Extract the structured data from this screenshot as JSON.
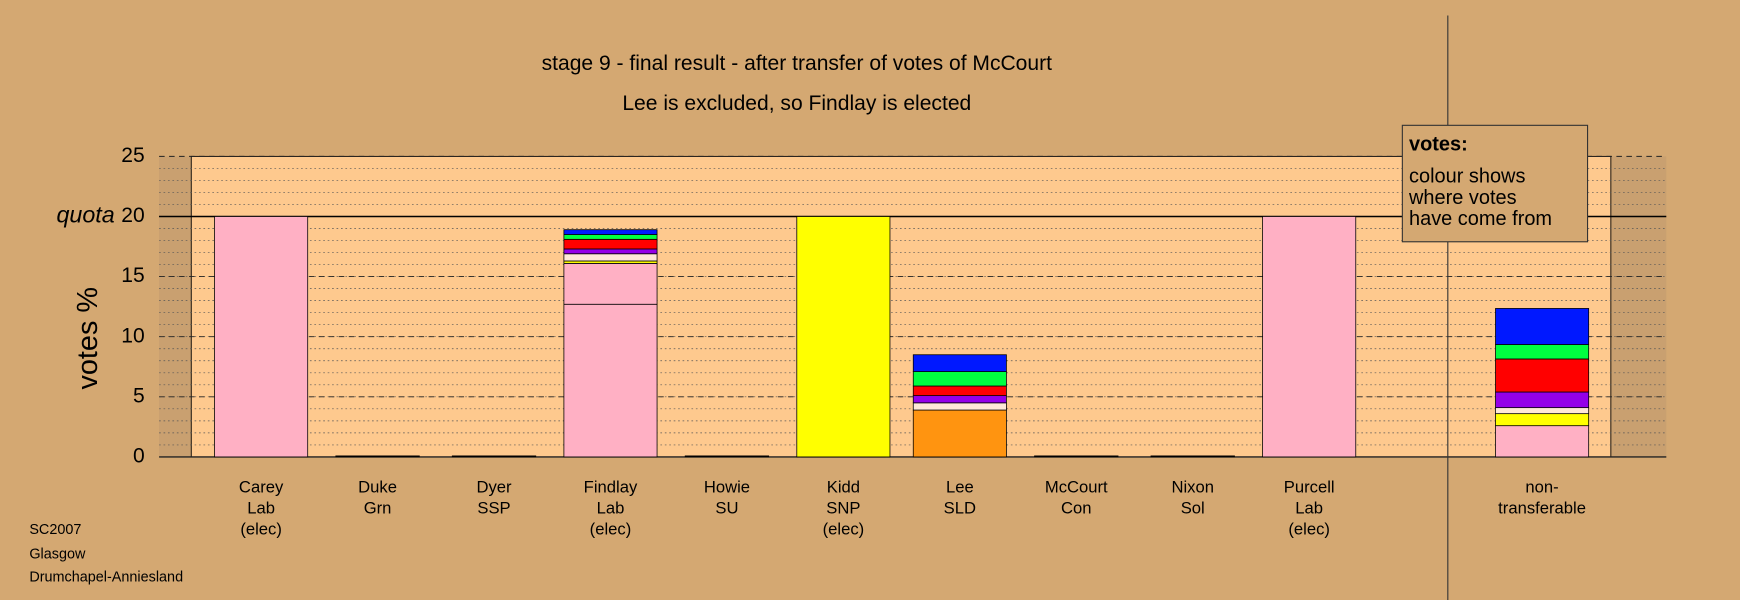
{
  "chart_data": {
    "type": "stacked-bar",
    "title": "stage 9 - final result - after transfer of votes of McCourt",
    "subtitle": "Lee is excluded, so Findlay is elected",
    "y_label": "votes %",
    "categories": [
      [
        "Carey",
        "Lab",
        "(elec)"
      ],
      [
        "Duke",
        "Grn"
      ],
      [
        "Dyer",
        "SSP"
      ],
      [
        "Findlay",
        "Lab",
        "(elec)"
      ],
      [
        "Howie",
        "SU"
      ],
      [
        "Kidd",
        "SNP",
        "(elec)"
      ],
      [
        "Lee",
        "SLD"
      ],
      [
        "McCourt",
        "Con"
      ],
      [
        "Nixon",
        "Sol"
      ],
      [
        "Purcell",
        "Lab",
        "(elec)"
      ],
      null,
      [
        "non-",
        "transferable"
      ]
    ],
    "series": [
      {
        "color": "#ffb0c4",
        "values": [
          20,
          0,
          0,
          12.7,
          0,
          0,
          0,
          0,
          0,
          20,
          null,
          2.6
        ]
      },
      {
        "color": "#ffb0c4",
        "values": [
          0,
          0,
          0,
          3.4,
          0,
          0,
          0,
          0,
          0,
          0,
          null,
          0
        ]
      },
      {
        "color": "#ffff00",
        "values": [
          0,
          0,
          0,
          0.2,
          0,
          20,
          0,
          0,
          0,
          0,
          null,
          1.0
        ]
      },
      {
        "color": "#ff9410",
        "values": [
          0,
          0,
          0,
          0,
          0,
          0,
          3.9,
          0,
          0,
          0,
          null,
          0
        ]
      },
      {
        "color": "#ffe8d8",
        "values": [
          0,
          0,
          0,
          0.6,
          0,
          0,
          0.6,
          0,
          0,
          0,
          null,
          0.5
        ]
      },
      {
        "color": "#9400e8",
        "values": [
          0,
          0,
          0,
          0.4,
          0,
          0,
          0.6,
          0,
          0,
          0,
          null,
          1.3
        ]
      },
      {
        "color": "#ff0000",
        "values": [
          0,
          0,
          0,
          0.8,
          0,
          0,
          0.8,
          0,
          0,
          0,
          null,
          2.75
        ]
      },
      {
        "color": "#00ff40",
        "values": [
          0,
          0,
          0,
          0.4,
          0,
          0,
          1.2,
          0,
          0,
          0,
          null,
          1.2
        ]
      },
      {
        "color": "#0018ff",
        "values": [
          0,
          0,
          0,
          0.4,
          0,
          0,
          1.4,
          0,
          0,
          0,
          null,
          3.0
        ]
      }
    ],
    "ylim": [
      0,
      25
    ],
    "yticks": [
      0,
      5,
      10,
      15,
      20,
      25
    ],
    "minor_grid_step": 1,
    "quota": {
      "value": 20,
      "label": "quota"
    },
    "legend": {
      "heading": "votes:",
      "lines": [
        "colour shows",
        "where votes",
        "have come from"
      ]
    },
    "footer": [
      "SC2007",
      "Glasgow",
      "Drumchapel-Anniesland"
    ]
  }
}
